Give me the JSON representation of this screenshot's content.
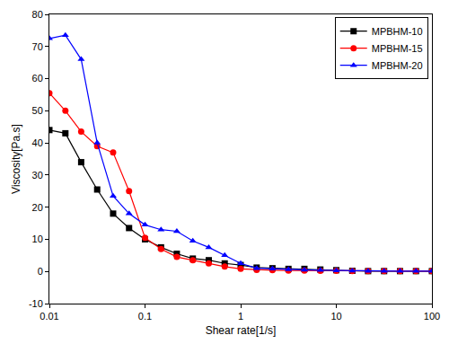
{
  "chart_data": {
    "type": "line",
    "x_label": "Shear rate[1/s]",
    "y_label": "Viscosity[Pa.s]",
    "log": "x",
    "grid": false,
    "legend": "top right",
    "x": [
      0.01,
      0.0147,
      0.0215,
      0.0316,
      0.0464,
      0.0681,
      0.1,
      0.147,
      0.215,
      0.316,
      0.464,
      0.681,
      1,
      1.47,
      2.15,
      3.16,
      4.64,
      6.81,
      10,
      14.7,
      21.5,
      31.6,
      46.4,
      68.1,
      100
    ],
    "series": [
      {
        "name": "MPBHM-10",
        "color": "#000000",
        "marker": "square",
        "values": [
          44,
          43,
          34,
          25.5,
          18,
          13.5,
          10,
          7.5,
          5.5,
          4,
          3.5,
          2.5,
          2,
          1.2,
          1,
          0.8,
          0.8,
          0.6,
          0.4,
          0.2,
          0.1,
          0.1,
          0.1,
          0.1,
          0.1
        ]
      },
      {
        "name": "MPBHM-15",
        "color": "#ff0000",
        "marker": "circle",
        "values": [
          55.5,
          50,
          43.5,
          39,
          37,
          25,
          10.5,
          7,
          4.5,
          3.5,
          2.5,
          1.5,
          0.8,
          0.5,
          0.4,
          0.3,
          0.3,
          0.2,
          0.2,
          0.1,
          0.1,
          0.1,
          0.1,
          0.1,
          0.1
        ]
      },
      {
        "name": "MPBHM-20",
        "color": "#0000ff",
        "marker": "triangle",
        "values": [
          72.5,
          73.5,
          66,
          40,
          23.5,
          18,
          14.5,
          13,
          12.5,
          9.5,
          7.5,
          5,
          2.5,
          1,
          0.8,
          0.6,
          0.5,
          0.4,
          0.3,
          0.2,
          0.1,
          0.1,
          0.1,
          0.1,
          0.1
        ]
      }
    ],
    "xlim": [
      0.01,
      100
    ],
    "xticks": [
      0.01,
      0.1,
      1,
      10,
      100
    ],
    "ylim": [
      -10,
      80
    ],
    "yticks": [
      -10,
      0,
      10,
      20,
      30,
      40,
      50,
      60,
      70,
      80
    ]
  }
}
